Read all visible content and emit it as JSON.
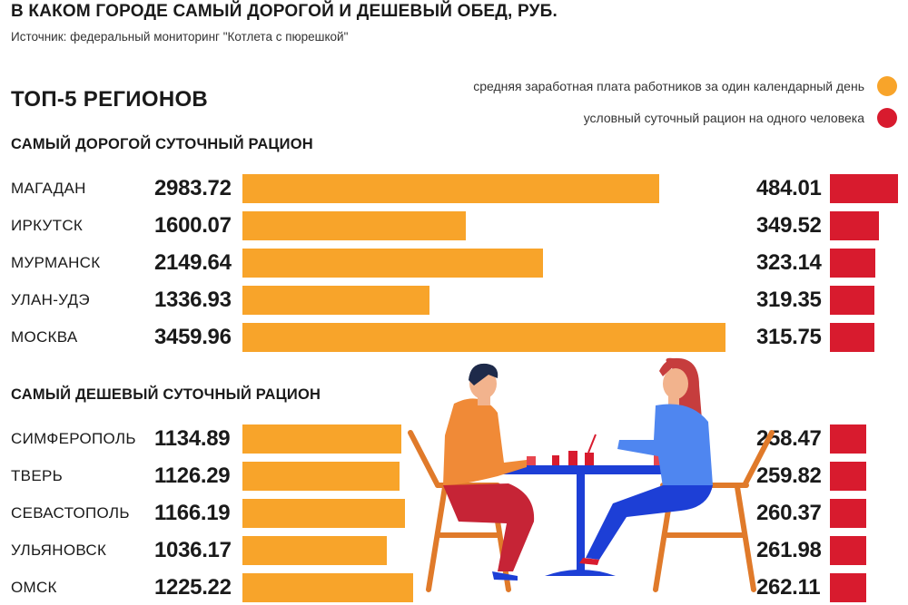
{
  "header": {
    "title": "В КАКОМ ГОРОДЕ САМЫЙ ДОРОГОЙ И ДЕШЕВЫЙ ОБЕД, РУБ.",
    "source": "Источник: федеральный мониторинг \"Котлета с пюрешкой\"",
    "subtitle": "ТОП-5 РЕГИОНОВ"
  },
  "legend": {
    "salary": "средняя заработная плата работников за один календарный день",
    "ration": "условный суточный рацион на одного человека"
  },
  "colors": {
    "salary": "#f8a42a",
    "ration": "#d81b2e"
  },
  "sections": {
    "expensive": "САМЫЙ ДОРОГОЙ СУТОЧНЫЙ РАЦИОН",
    "cheap": "САМЫЙ ДЕШЕВЫЙ СУТОЧНЫЙ РАЦИОН"
  },
  "chart_data": {
    "type": "bar",
    "groups": [
      {
        "name": "САМЫЙ ДОРОГОЙ СУТОЧНЫЙ РАЦИОН",
        "categories": [
          "МАГАДАН",
          "ИРКУТСК",
          "МУРМАНСК",
          "УЛАН-УДЭ",
          "МОСКВА"
        ],
        "salary": [
          "2983.72",
          "1600.07",
          "2149.64",
          "1336.93",
          "3459.96"
        ],
        "ration": [
          "484.01",
          "349.52",
          "323.14",
          "319.35",
          "315.75"
        ]
      },
      {
        "name": "САМЫЙ ДЕШЕВЫЙ СУТОЧНЫЙ РАЦИОН",
        "categories": [
          "СИМФЕРОПОЛЬ",
          "ТВЕРЬ",
          "СЕВАСТОПОЛЬ",
          "УЛЬЯНОВСК",
          "ОМСК"
        ],
        "salary": [
          "1134.89",
          "1126.29",
          "1166.19",
          "1036.17",
          "1225.22"
        ],
        "ration": [
          "258.47",
          "259.82",
          "260.37",
          "261.98",
          "262.11"
        ]
      }
    ],
    "series": [
      {
        "name": "средняя заработная плата работников за один календарный день",
        "key": "salary"
      },
      {
        "name": "условный суточный рацион на одного человека",
        "key": "ration"
      }
    ],
    "legend_position": "top-right"
  }
}
